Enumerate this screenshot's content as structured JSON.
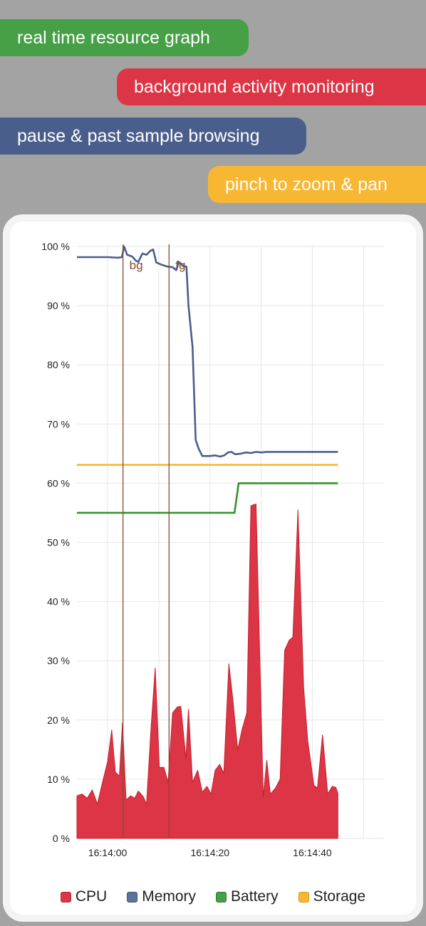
{
  "features": [
    {
      "label": "real time resource graph",
      "color": "#45a046"
    },
    {
      "label": "background activity monitoring",
      "color": "#dc3545"
    },
    {
      "label": "pause & past sample browsing",
      "color": "#4a5e8c"
    },
    {
      "label": "pinch to zoom & pan",
      "color": "#f7b733"
    }
  ],
  "legend": [
    {
      "label": "CPU",
      "color": "#dc3545",
      "icon": "cpu-swatch"
    },
    {
      "label": "Memory",
      "color": "#5b7397",
      "icon": "memory-swatch"
    },
    {
      "label": "Battery",
      "color": "#45a046",
      "icon": "battery-swatch"
    },
    {
      "label": "Storage",
      "color": "#f7b733",
      "icon": "storage-swatch"
    }
  ],
  "chart_data": {
    "type": "area",
    "ylim": [
      0,
      100
    ],
    "y_ticks": [
      "0 %",
      "10 %",
      "20 %",
      "30 %",
      "40 %",
      "50 %",
      "60 %",
      "70 %",
      "80 %",
      "90 %",
      "100 %"
    ],
    "x_range": [
      -6,
      54
    ],
    "x_ticks": [
      {
        "x": 0,
        "label": "16:14:00"
      },
      {
        "x": 20,
        "label": "16:14:20"
      },
      {
        "x": 40,
        "label": "16:14:40"
      }
    ],
    "grid": true,
    "legend_position": "bottom",
    "markers": [
      {
        "x": 3,
        "label": "bg"
      },
      {
        "x": 12,
        "label": "fg"
      }
    ],
    "series": [
      {
        "name": "CPU",
        "kind": "area",
        "color": "#dc3545",
        "points": [
          [
            -6,
            7.2
          ],
          [
            -5,
            7.5
          ],
          [
            -4,
            6.8
          ],
          [
            -3,
            8.2
          ],
          [
            -2,
            5.8
          ],
          [
            -1,
            9.5
          ],
          [
            0,
            13
          ],
          [
            0.8,
            18.3
          ],
          [
            1.5,
            11.2
          ],
          [
            2.3,
            10.5
          ],
          [
            2.9,
            19.5
          ],
          [
            3.6,
            6.5
          ],
          [
            4.5,
            7.2
          ],
          [
            5.3,
            6.8
          ],
          [
            6,
            8
          ],
          [
            7,
            7
          ],
          [
            7.6,
            5.8
          ],
          [
            8.5,
            19
          ],
          [
            9.3,
            28.8
          ],
          [
            10.1,
            12
          ],
          [
            11,
            12
          ],
          [
            11.8,
            9.5
          ],
          [
            12.7,
            21.2
          ],
          [
            13.6,
            22.2
          ],
          [
            14.3,
            22.3
          ],
          [
            15.3,
            13.5
          ],
          [
            15.8,
            21.8
          ],
          [
            16.6,
            9.5
          ],
          [
            17.6,
            11.5
          ],
          [
            18.5,
            7.8
          ],
          [
            19.4,
            8.8
          ],
          [
            20.2,
            7.5
          ],
          [
            21,
            11.5
          ],
          [
            21.9,
            12.5
          ],
          [
            22.7,
            11
          ],
          [
            23.7,
            29.5
          ],
          [
            24.5,
            23.2
          ],
          [
            25.4,
            15
          ],
          [
            26.3,
            18.5
          ],
          [
            27.2,
            21.2
          ],
          [
            28,
            56.2
          ],
          [
            29,
            56.5
          ],
          [
            30.4,
            7
          ],
          [
            31.1,
            13.2
          ],
          [
            31.8,
            7.5
          ],
          [
            32.8,
            8.5
          ],
          [
            33.7,
            10
          ],
          [
            34.6,
            31.8
          ],
          [
            35.5,
            33.5
          ],
          [
            36.2,
            34
          ],
          [
            37.2,
            55.5
          ],
          [
            38.3,
            25.5
          ],
          [
            39.1,
            16.5
          ],
          [
            40.3,
            9
          ],
          [
            41,
            8.5
          ],
          [
            42,
            17.5
          ],
          [
            43,
            7.5
          ],
          [
            43.9,
            8.8
          ],
          [
            44.6,
            8.6
          ],
          [
            45,
            7.6
          ]
        ]
      },
      {
        "name": "Memory",
        "kind": "line",
        "color": "#4a5e8c",
        "points": [
          [
            -6,
            98.2
          ],
          [
            -4,
            98.2
          ],
          [
            -2,
            98.2
          ],
          [
            0,
            98.2
          ],
          [
            2,
            98.1
          ],
          [
            2.8,
            98.2
          ],
          [
            3.2,
            100
          ],
          [
            3.8,
            98.6
          ],
          [
            4.8,
            98.3
          ],
          [
            5.5,
            97.6
          ],
          [
            6,
            97.4
          ],
          [
            6.8,
            98.8
          ],
          [
            7.6,
            98.6
          ],
          [
            8.4,
            99.3
          ],
          [
            8.9,
            99.5
          ],
          [
            9.5,
            97.3
          ],
          [
            10.6,
            96.9
          ],
          [
            11.7,
            96.6
          ],
          [
            12.7,
            96.5
          ],
          [
            13.4,
            96
          ],
          [
            13.9,
            97.4
          ],
          [
            14.7,
            96.7
          ],
          [
            15.4,
            96.6
          ],
          [
            15.8,
            90
          ],
          [
            16.6,
            83
          ],
          [
            17.2,
            67.3
          ],
          [
            17.8,
            65.8
          ],
          [
            18.5,
            64.6
          ],
          [
            20,
            64.6
          ],
          [
            21,
            64.7
          ],
          [
            22,
            64.5
          ],
          [
            22.8,
            64.7
          ],
          [
            23.5,
            65.2
          ],
          [
            24.2,
            65.3
          ],
          [
            24.9,
            64.9
          ],
          [
            26,
            65
          ],
          [
            27,
            65.2
          ],
          [
            28,
            65.1
          ],
          [
            29,
            65.3
          ],
          [
            30,
            65.2
          ],
          [
            31,
            65.3
          ],
          [
            45,
            65.3
          ]
        ]
      },
      {
        "name": "Battery",
        "kind": "line",
        "color": "#34922f",
        "points": [
          [
            -6,
            55
          ],
          [
            24.8,
            55
          ],
          [
            25.6,
            60
          ],
          [
            45,
            60
          ]
        ]
      },
      {
        "name": "Storage",
        "kind": "line",
        "color": "#f7b733",
        "points": [
          [
            -6,
            63.1
          ],
          [
            45,
            63.1
          ]
        ]
      }
    ]
  }
}
